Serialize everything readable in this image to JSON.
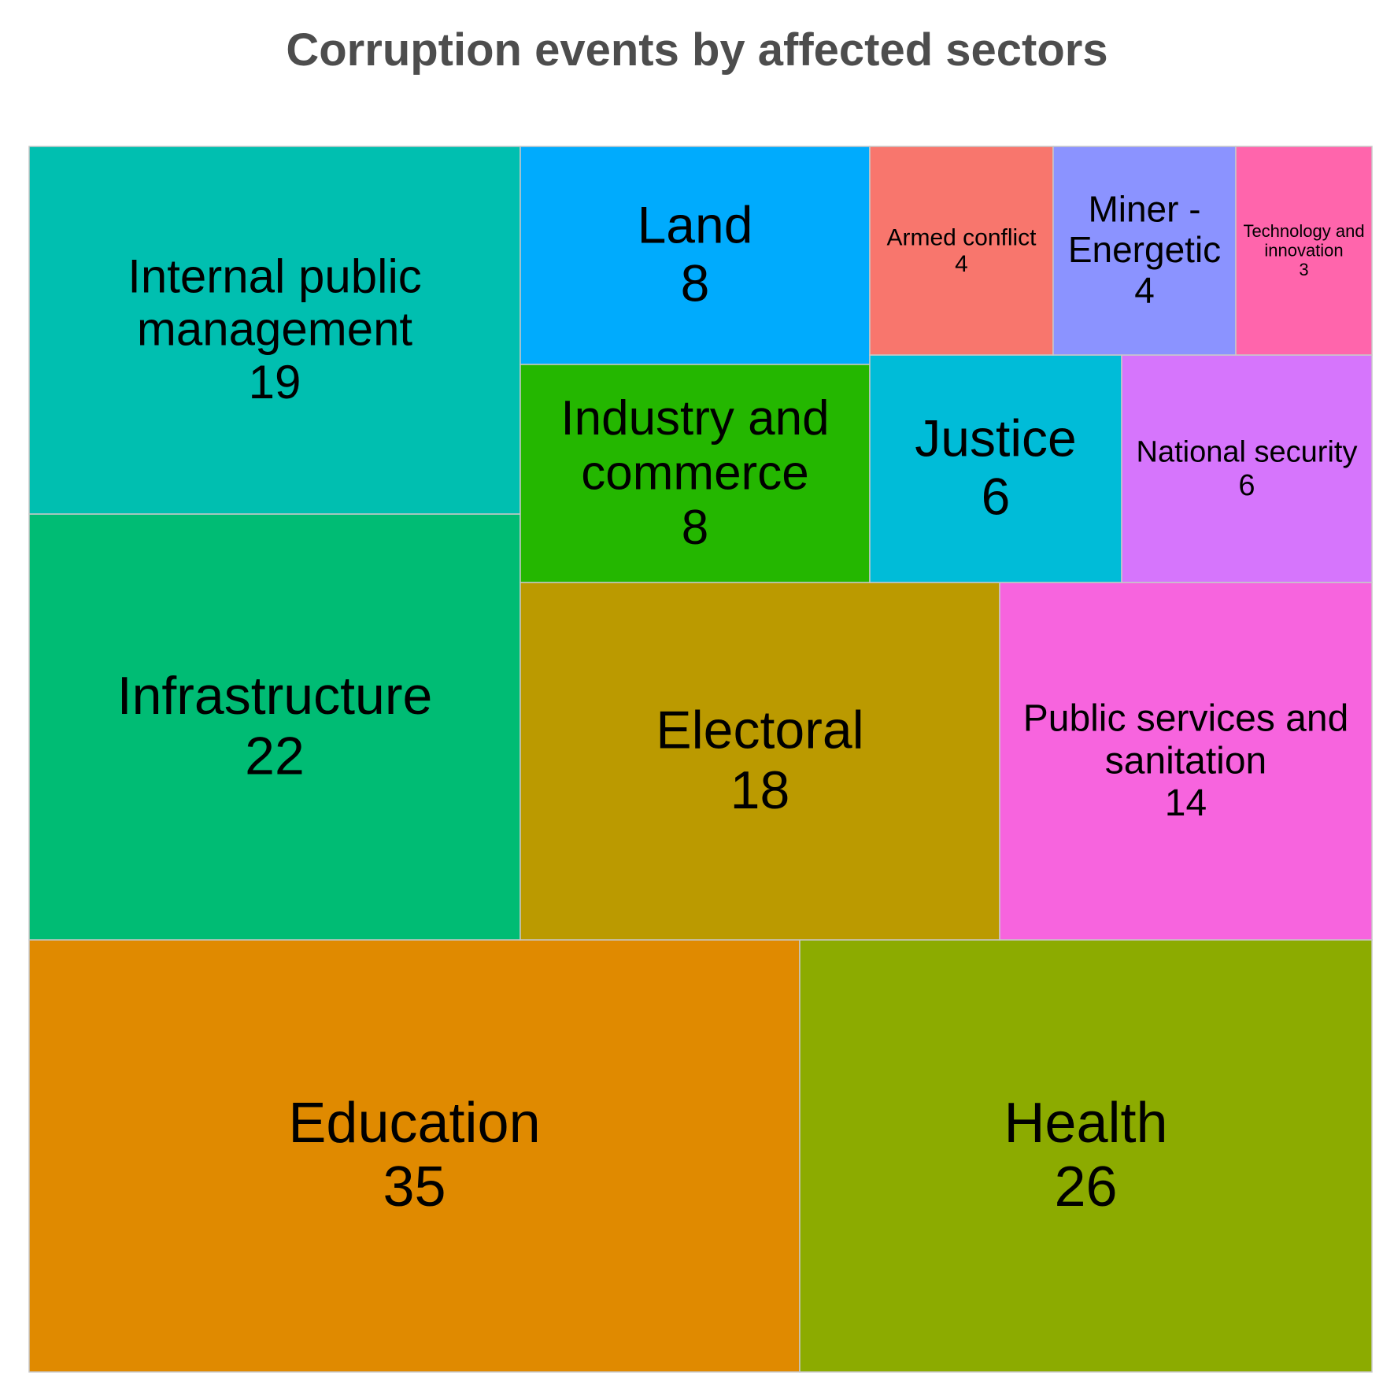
{
  "chart_data": {
    "type": "treemap",
    "title": "Corruption events by affected sectors",
    "items": [
      {
        "name": "Education",
        "label_lines": [
          "Education"
        ],
        "value": 35,
        "color": "#e08a00"
      },
      {
        "name": "Health",
        "label_lines": [
          "Health"
        ],
        "value": 26,
        "color": "#8cab00"
      },
      {
        "name": "Infrastructure",
        "label_lines": [
          "Infrastructure"
        ],
        "value": 22,
        "color": "#00bc74"
      },
      {
        "name": "Internal public management",
        "label_lines": [
          "Internal public",
          "management"
        ],
        "value": 19,
        "color": "#00bfb0"
      },
      {
        "name": "Electoral",
        "label_lines": [
          "Electoral"
        ],
        "value": 18,
        "color": "#bb9a00"
      },
      {
        "name": "Public services and sanitation",
        "label_lines": [
          "Public services and",
          "sanitation"
        ],
        "value": 14,
        "color": "#f764de"
      },
      {
        "name": "Land",
        "label_lines": [
          "Land"
        ],
        "value": 8,
        "color": "#00abfd"
      },
      {
        "name": "Industry and commerce",
        "label_lines": [
          "Industry and",
          "commerce"
        ],
        "value": 8,
        "color": "#24b700"
      },
      {
        "name": "Justice",
        "label_lines": [
          "Justice"
        ],
        "value": 6,
        "color": "#00bcd8"
      },
      {
        "name": "National security",
        "label_lines": [
          "National security"
        ],
        "value": 6,
        "color": "#d675fc"
      },
      {
        "name": "Armed conflict",
        "label_lines": [
          "Armed conflict"
        ],
        "value": 4,
        "color": "#f8766d"
      },
      {
        "name": "Miner - Energetic",
        "label_lines": [
          "Miner -",
          "Energetic"
        ],
        "value": 4,
        "color": "#8b93ff"
      },
      {
        "name": "Technology and innovation",
        "label_lines": [
          "Technology and",
          "innovation"
        ],
        "value": 3,
        "color": "#ff65ac"
      }
    ]
  }
}
